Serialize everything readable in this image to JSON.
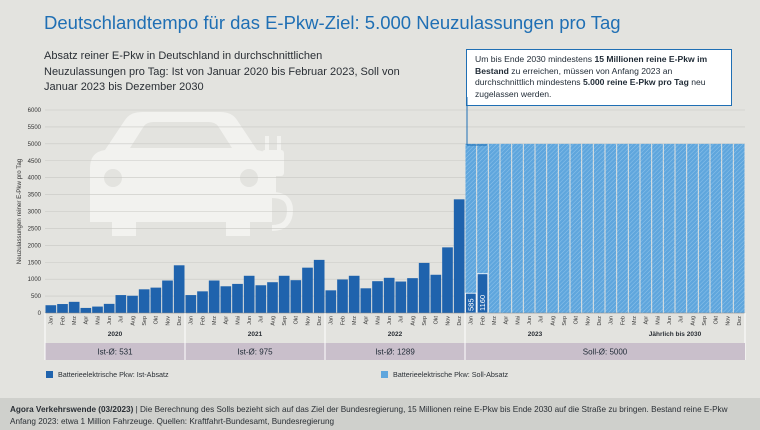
{
  "title": "Deutschlandtempo für das E-Pkw-Ziel: 5.000 Neuzulassungen pro Tag",
  "subtitle": "Absatz reiner E-Pkw in Deutschland in durchschnittlichen Neuzulassungen pro Tag: Ist von Januar 2020 bis Februar 2023, Soll von Januar 2023 bis Dezember 2030",
  "callout": {
    "p1": "Um bis Ende 2030 mindestens ",
    "b1": "15 Millionen reine E-Pkw im Bestand",
    "p2": " zu erreichen, müssen von Anfang 2023 an durchschnittlich mindestens ",
    "b2": "5.000 reine E-Pkw pro Tag",
    "p3": " neu zugelassen werden."
  },
  "legend": {
    "ist": "Batterieelektrische Pkw: Ist-Absatz",
    "soll": "Batterieelektrische Pkw: Soll-Absatz"
  },
  "footer": {
    "source_bold": "Agora Verkehrswende (03/2023)",
    "text": " | Die Berechnung des Solls bezieht sich auf das Ziel der Bundesregierung, 15 Millionen reine E-Pkw bis Ende 2030 auf die Straße zu bringen. Bestand reine E-Pkw Anfang 2023: etwa 1 Million Fahrzeuge. Quellen: Kraftfahrt-Bundesamt, Bundesregierung"
  },
  "colors": {
    "ist": "#1f63ad",
    "soll": "#5fa6dd",
    "band": "#c9bfcb",
    "title": "#1f6fb4"
  },
  "chart_data": {
    "type": "bar",
    "ylabel": "Neuzulassungen reiner E-Pkw pro Tag",
    "ylim": [
      0,
      6000
    ],
    "yticks": [
      0,
      500,
      1000,
      1500,
      2000,
      2500,
      3000,
      3500,
      4000,
      4500,
      5000,
      5500,
      6000
    ],
    "grid": true,
    "legend_position": "bottom-left",
    "month_labels": [
      "Jan",
      "Feb",
      "Mrz",
      "Apr",
      "Mai",
      "Jun",
      "Jul",
      "Aug",
      "Sep",
      "Okt",
      "Nov",
      "Dez"
    ],
    "groups": [
      {
        "label": "2020",
        "band": "Ist-Ø: 531",
        "months": [
          "Jan",
          "Feb",
          "Mrz",
          "Apr",
          "Mai",
          "Jun",
          "Jul",
          "Aug",
          "Sep",
          "Okt",
          "Nov",
          "Dez"
        ]
      },
      {
        "label": "2021",
        "band": "Ist-Ø: 975",
        "months": [
          "Jan",
          "Feb",
          "Mrz",
          "Apr",
          "Mai",
          "Jun",
          "Jul",
          "Aug",
          "Sep",
          "Okt",
          "Nov",
          "Dez"
        ]
      },
      {
        "label": "2022",
        "band": "Ist-Ø: 1289",
        "months": [
          "Jan",
          "Feb",
          "Mrz",
          "Apr",
          "Mai",
          "Jun",
          "Jul",
          "Aug",
          "Sep",
          "Okt",
          "Nov",
          "Dez"
        ]
      },
      {
        "label": "2023",
        "band": "Soll-Ø: 5000",
        "months": [
          "Jan",
          "Feb",
          "Mrz",
          "Apr",
          "Mai",
          "Jun",
          "Jul",
          "Aug",
          "Sep",
          "Okt",
          "Nov",
          "Dez"
        ]
      },
      {
        "label": "Jährlich bis 2030",
        "band": "",
        "months": [
          "Jan",
          "Feb",
          "Mrz",
          "Apr",
          "Mai",
          "Jun",
          "Jul",
          "Aug",
          "Sep",
          "Okt",
          "Nov",
          "Dez"
        ]
      }
    ],
    "series": [
      {
        "name": "Batterieelektrische Pkw: Ist-Absatz",
        "values": [
          230,
          265,
          330,
          150,
          190,
          270,
          530,
          510,
          700,
          750,
          960,
          1410,
          530,
          640,
          960,
          790,
          860,
          1100,
          820,
          910,
          1100,
          970,
          1340,
          1570,
          670,
          990,
          1100,
          730,
          940,
          1040,
          930,
          1030,
          1480,
          1130,
          1940,
          3360,
          585,
          1160
        ]
      },
      {
        "name": "Batterieelektrische Pkw: Soll-Absatz",
        "values": [
          5000,
          5000,
          5000,
          5000,
          5000,
          5000,
          5000,
          5000,
          5000,
          5000,
          5000,
          5000,
          5000,
          5000,
          5000,
          5000,
          5000,
          5000,
          5000,
          5000,
          5000,
          5000,
          5000,
          5000
        ],
        "start_index": 36
      }
    ],
    "data_labels": [
      {
        "index": 36,
        "text": "585"
      },
      {
        "index": 37,
        "text": "1160"
      }
    ]
  }
}
